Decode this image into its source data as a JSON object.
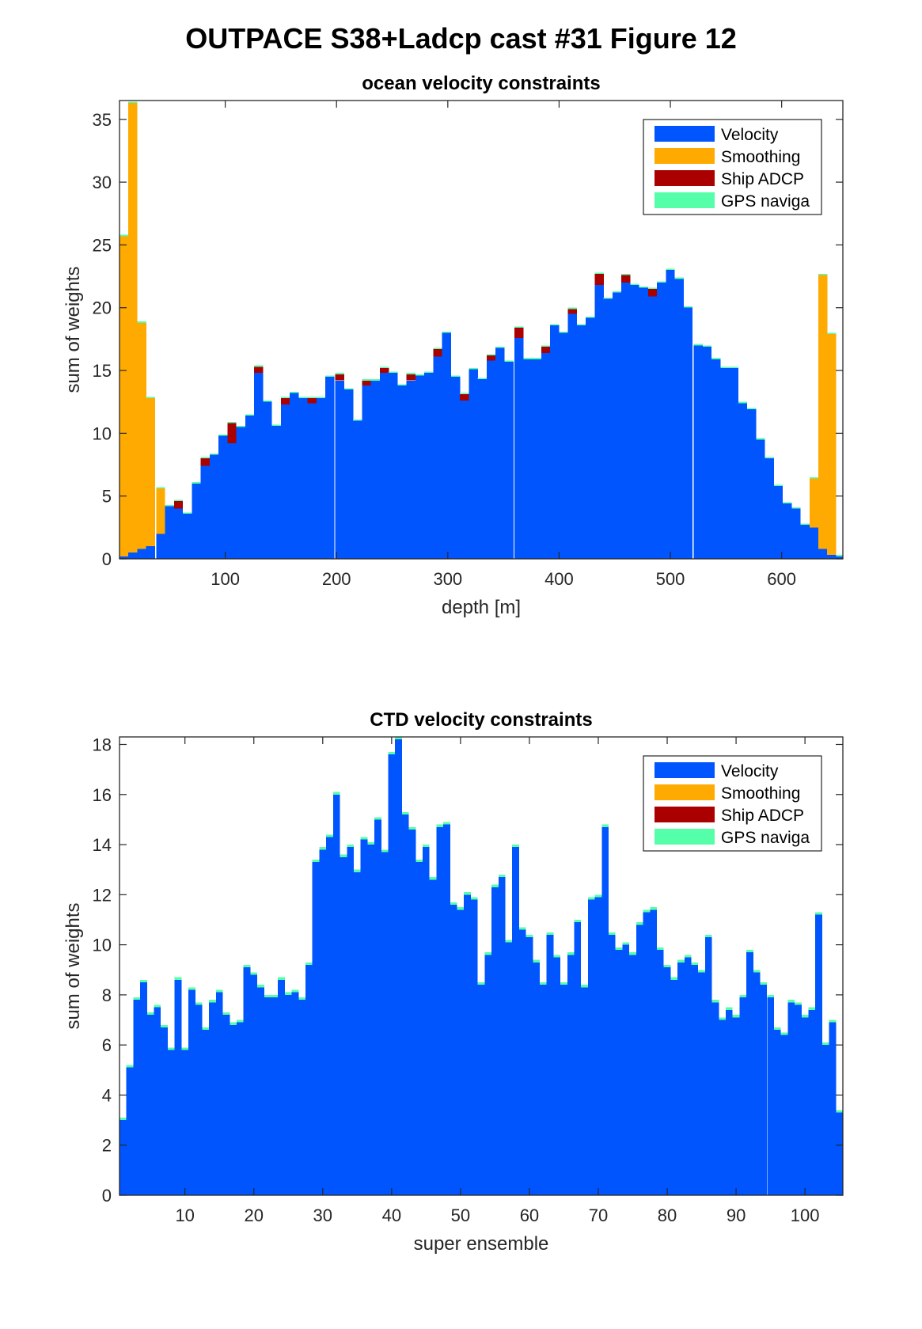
{
  "figure_title": "OUTPACE S38+Ladcp cast #31  Figure 12",
  "colors": {
    "velocity": "#0055FF",
    "smoothing": "#FFAA00",
    "ship_adcp": "#AA0000",
    "gps_naviga": "#55FFAA"
  },
  "chart_data": [
    {
      "type": "bar",
      "stacked": true,
      "title": "ocean velocity constraints",
      "xlabel": "depth [m]",
      "ylabel": "sum of weights",
      "xlim": [
        5,
        655
      ],
      "ylim": [
        0,
        36.5
      ],
      "xticks": [
        100,
        200,
        300,
        400,
        500,
        600
      ],
      "yticks": [
        0,
        5,
        10,
        15,
        20,
        25,
        30,
        35
      ],
      "bin_width": 8.1,
      "legend": [
        "Velocity",
        "Smoothing",
        "Ship ADCP",
        "GPS naviga"
      ],
      "legend_position": "top-right",
      "x": [
        9,
        17,
        25,
        33,
        42,
        50,
        58,
        66,
        74,
        82,
        90,
        98,
        106,
        114,
        122,
        130,
        138,
        146,
        154,
        162,
        170,
        178,
        186,
        194,
        203,
        211,
        219,
        227,
        235,
        243,
        251,
        259,
        267,
        275,
        283,
        291,
        299,
        307,
        315,
        323,
        331,
        339,
        347,
        355,
        364,
        372,
        380,
        388,
        396,
        404,
        412,
        420,
        428,
        436,
        444,
        452,
        460,
        468,
        476,
        484,
        492,
        500,
        508,
        516,
        525,
        533,
        541,
        549,
        557,
        565,
        573,
        581,
        589,
        597,
        605,
        613,
        621,
        629,
        637,
        645,
        653
      ],
      "series": [
        {
          "name": "Velocity",
          "values": [
            0.2,
            0.5,
            0.8,
            1.0,
            2.0,
            4.2,
            4.0,
            3.6,
            6.0,
            7.4,
            8.3,
            9.8,
            9.2,
            10.5,
            11.4,
            14.8,
            12.5,
            10.6,
            12.3,
            13.2,
            12.8,
            12.4,
            12.8,
            14.5,
            14.2,
            13.5,
            11.0,
            13.8,
            14.2,
            14.8,
            14.8,
            13.8,
            14.2,
            14.6,
            14.8,
            16.1,
            18.0,
            14.5,
            12.6,
            15.1,
            14.3,
            15.8,
            16.8,
            15.7,
            17.6,
            15.9,
            15.9,
            16.4,
            18.6,
            18.0,
            19.5,
            18.6,
            19.2,
            21.8,
            20.7,
            21.2,
            22.0,
            21.8,
            21.6,
            20.9,
            22.0,
            23.0,
            22.3,
            20.0,
            17.0,
            16.9,
            15.9,
            15.2,
            15.2,
            12.4,
            11.9,
            9.5,
            8.0,
            5.8,
            4.4,
            4.0,
            2.7,
            2.5,
            0.8,
            0.3,
            0.2
          ]
        },
        {
          "name": "Smoothing",
          "values": [
            25.5,
            35.8,
            18.0,
            11.8,
            3.6,
            0.0,
            0.0,
            0.0,
            0.0,
            0.0,
            0.0,
            0.0,
            0.0,
            0.0,
            0.0,
            0.0,
            0.0,
            0.0,
            0.0,
            0.0,
            0.0,
            0.0,
            0.0,
            0.0,
            0.0,
            0.0,
            0.0,
            0.0,
            0.0,
            0.0,
            0.0,
            0.0,
            0.0,
            0.0,
            0.0,
            0.0,
            0.0,
            0.0,
            0.0,
            0.0,
            0.0,
            0.0,
            0.0,
            0.0,
            0.0,
            0.0,
            0.0,
            0.0,
            0.0,
            0.0,
            0.0,
            0.0,
            0.0,
            0.0,
            0.0,
            0.0,
            0.0,
            0.0,
            0.0,
            0.0,
            0.0,
            0.0,
            0.0,
            0.0,
            0.0,
            0.0,
            0.0,
            0.0,
            0.0,
            0.0,
            0.0,
            0.0,
            0.0,
            0.0,
            0.0,
            0.0,
            0.0,
            3.9,
            21.8,
            17.6,
            0.0
          ]
        },
        {
          "name": "Ship ADCP",
          "values": [
            0.0,
            0.0,
            0.0,
            0.0,
            0.0,
            0.0,
            0.6,
            0.0,
            0.0,
            0.6,
            0.0,
            0.0,
            1.6,
            0.0,
            0.0,
            0.5,
            0.0,
            0.0,
            0.5,
            0.0,
            0.0,
            0.4,
            0.0,
            0.0,
            0.5,
            0.0,
            0.0,
            0.4,
            0.0,
            0.4,
            0.0,
            0.0,
            0.5,
            0.0,
            0.0,
            0.6,
            0.0,
            0.0,
            0.5,
            0.0,
            0.0,
            0.4,
            0.0,
            0.0,
            0.8,
            0.0,
            0.0,
            0.5,
            0.0,
            0.0,
            0.4,
            0.0,
            0.0,
            0.9,
            0.0,
            0.0,
            0.6,
            0.0,
            0.0,
            0.6,
            0.0,
            0.0,
            0.0,
            0.0,
            0.0,
            0.0,
            0.0,
            0.0,
            0.0,
            0.0,
            0.0,
            0.0,
            0.0,
            0.0,
            0.0,
            0.0,
            0.0,
            0.0,
            0.0,
            0.0,
            0.0
          ]
        },
        {
          "name": "GPS naviga",
          "values": [
            0.1,
            0.1,
            0.1,
            0.1,
            0.1,
            0.1,
            0.1,
            0.1,
            0.1,
            0.1,
            0.1,
            0.1,
            0.1,
            0.1,
            0.1,
            0.1,
            0.1,
            0.1,
            0.1,
            0.1,
            0.1,
            0.1,
            0.1,
            0.1,
            0.1,
            0.1,
            0.1,
            0.1,
            0.1,
            0.1,
            0.1,
            0.1,
            0.1,
            0.1,
            0.1,
            0.1,
            0.1,
            0.1,
            0.1,
            0.1,
            0.1,
            0.1,
            0.1,
            0.1,
            0.1,
            0.1,
            0.1,
            0.1,
            0.1,
            0.1,
            0.1,
            0.1,
            0.1,
            0.1,
            0.1,
            0.1,
            0.1,
            0.1,
            0.1,
            0.1,
            0.1,
            0.1,
            0.1,
            0.1,
            0.1,
            0.1,
            0.1,
            0.1,
            0.1,
            0.1,
            0.1,
            0.1,
            0.1,
            0.1,
            0.1,
            0.1,
            0.1,
            0.1,
            0.1,
            0.1,
            0.1
          ]
        }
      ]
    },
    {
      "type": "bar",
      "stacked": true,
      "title": "CTD velocity constraints",
      "xlabel": "super ensemble",
      "ylabel": "sum of weights",
      "xlim": [
        0.5,
        105.5
      ],
      "ylim": [
        0,
        18.3
      ],
      "xticks": [
        10,
        20,
        30,
        40,
        50,
        60,
        70,
        80,
        90,
        100
      ],
      "yticks": [
        0,
        2,
        4,
        6,
        8,
        10,
        12,
        14,
        16,
        18
      ],
      "bin_width": 1,
      "legend": [
        "Velocity",
        "Smoothing",
        "Ship ADCP",
        "GPS naviga"
      ],
      "legend_position": "top-right",
      "x": [
        1,
        2,
        3,
        4,
        5,
        6,
        7,
        8,
        9,
        10,
        11,
        12,
        13,
        14,
        15,
        16,
        17,
        18,
        19,
        20,
        21,
        22,
        23,
        24,
        25,
        26,
        27,
        28,
        29,
        30,
        31,
        32,
        33,
        34,
        35,
        36,
        37,
        38,
        39,
        40,
        41,
        42,
        43,
        44,
        45,
        46,
        47,
        48,
        49,
        50,
        51,
        52,
        53,
        54,
        55,
        56,
        57,
        58,
        59,
        60,
        61,
        62,
        63,
        64,
        65,
        66,
        67,
        68,
        69,
        70,
        71,
        72,
        73,
        74,
        75,
        76,
        77,
        78,
        79,
        80,
        81,
        82,
        83,
        84,
        85,
        86,
        87,
        88,
        89,
        90,
        91,
        92,
        93,
        94,
        95,
        96,
        97,
        98,
        99,
        100,
        101,
        102,
        103,
        104,
        105
      ],
      "series": [
        {
          "name": "Velocity",
          "values": [
            3.0,
            5.1,
            7.8,
            8.5,
            7.2,
            7.5,
            6.7,
            5.8,
            8.6,
            5.8,
            8.2,
            7.6,
            6.6,
            7.7,
            8.1,
            7.2,
            6.8,
            6.9,
            9.1,
            8.8,
            8.3,
            7.9,
            7.9,
            8.6,
            8.0,
            8.1,
            7.8,
            9.2,
            13.3,
            13.8,
            14.3,
            16.0,
            13.5,
            13.9,
            12.9,
            14.2,
            14.0,
            15.0,
            13.7,
            17.6,
            18.2,
            15.2,
            14.6,
            13.3,
            13.9,
            12.6,
            14.7,
            14.8,
            11.6,
            11.4,
            12.0,
            11.8,
            8.4,
            9.6,
            12.3,
            12.7,
            10.1,
            13.9,
            10.6,
            10.3,
            9.3,
            8.4,
            10.4,
            9.5,
            8.4,
            9.6,
            10.9,
            8.3,
            11.8,
            11.9,
            14.7,
            10.4,
            9.8,
            10.0,
            9.6,
            10.8,
            11.3,
            11.4,
            9.8,
            9.1,
            8.6,
            9.3,
            9.5,
            9.2,
            8.9,
            10.3,
            7.7,
            7.0,
            7.4,
            7.1,
            7.9,
            9.7,
            8.9,
            8.4,
            7.9,
            6.6,
            6.4,
            7.7,
            7.6,
            7.1,
            7.4,
            11.2,
            6.0,
            6.9,
            3.3
          ]
        },
        {
          "name": "Smoothing",
          "values": [
            0.0,
            0.0,
            0.0,
            0.0,
            0.0,
            0.0,
            0.0,
            0.0,
            0.0,
            0.0,
            0.0,
            0.0,
            0.0,
            0.0,
            0.0,
            0.0,
            0.0,
            0.0,
            0.0,
            0.0,
            0.0,
            0.0,
            0.0,
            0.0,
            0.0,
            0.0,
            0.0,
            0.0,
            0.0,
            0.0,
            0.0,
            0.0,
            0.0,
            0.0,
            0.0,
            0.0,
            0.0,
            0.0,
            0.0,
            0.0,
            0.0,
            0.0,
            0.0,
            0.0,
            0.0,
            0.0,
            0.0,
            0.0,
            0.0,
            0.0,
            0.0,
            0.0,
            0.0,
            0.0,
            0.0,
            0.0,
            0.0,
            0.0,
            0.0,
            0.0,
            0.0,
            0.0,
            0.0,
            0.0,
            0.0,
            0.0,
            0.0,
            0.0,
            0.0,
            0.0,
            0.0,
            0.0,
            0.0,
            0.0,
            0.0,
            0.0,
            0.0,
            0.0,
            0.0,
            0.0,
            0.0,
            0.0,
            0.0,
            0.0,
            0.0,
            0.0,
            0.0,
            0.0,
            0.0,
            0.0,
            0.0,
            0.0,
            0.0,
            0.0,
            0.0,
            0.0,
            0.0,
            0.0,
            0.0,
            0.0,
            0.0,
            0.0,
            0.0,
            0.0,
            0.0
          ]
        },
        {
          "name": "Ship ADCP",
          "values": [
            0.0,
            0.0,
            0.0,
            0.0,
            0.0,
            0.0,
            0.0,
            0.0,
            0.0,
            0.0,
            0.0,
            0.0,
            0.0,
            0.0,
            0.0,
            0.0,
            0.0,
            0.0,
            0.0,
            0.0,
            0.0,
            0.0,
            0.0,
            0.0,
            0.0,
            0.0,
            0.0,
            0.0,
            0.0,
            0.0,
            0.0,
            0.0,
            0.0,
            0.0,
            0.0,
            0.0,
            0.0,
            0.0,
            0.0,
            0.0,
            0.0,
            0.0,
            0.0,
            0.0,
            0.0,
            0.0,
            0.0,
            0.0,
            0.0,
            0.0,
            0.0,
            0.0,
            0.0,
            0.0,
            0.0,
            0.0,
            0.0,
            0.0,
            0.0,
            0.0,
            0.0,
            0.0,
            0.0,
            0.0,
            0.0,
            0.0,
            0.0,
            0.0,
            0.0,
            0.0,
            0.0,
            0.0,
            0.0,
            0.0,
            0.0,
            0.0,
            0.0,
            0.0,
            0.0,
            0.0,
            0.0,
            0.0,
            0.0,
            0.0,
            0.0,
            0.0,
            0.0,
            0.0,
            0.0,
            0.0,
            0.0,
            0.0,
            0.0,
            0.0,
            0.0,
            0.0,
            0.0,
            0.0,
            0.0,
            0.0,
            0.0,
            0.0,
            0.0,
            0.0,
            0.0
          ]
        },
        {
          "name": "GPS naviga",
          "values": [
            0.1,
            0.1,
            0.1,
            0.1,
            0.1,
            0.1,
            0.1,
            0.1,
            0.1,
            0.1,
            0.1,
            0.1,
            0.1,
            0.1,
            0.1,
            0.1,
            0.1,
            0.1,
            0.1,
            0.1,
            0.1,
            0.1,
            0.1,
            0.1,
            0.1,
            0.1,
            0.1,
            0.1,
            0.1,
            0.1,
            0.1,
            0.1,
            0.1,
            0.1,
            0.1,
            0.1,
            0.1,
            0.1,
            0.1,
            0.1,
            0.1,
            0.1,
            0.1,
            0.1,
            0.1,
            0.1,
            0.1,
            0.1,
            0.1,
            0.1,
            0.1,
            0.1,
            0.1,
            0.1,
            0.1,
            0.1,
            0.1,
            0.1,
            0.1,
            0.1,
            0.1,
            0.1,
            0.1,
            0.1,
            0.1,
            0.1,
            0.1,
            0.1,
            0.1,
            0.1,
            0.1,
            0.1,
            0.1,
            0.1,
            0.1,
            0.1,
            0.1,
            0.1,
            0.1,
            0.1,
            0.1,
            0.1,
            0.1,
            0.1,
            0.1,
            0.1,
            0.1,
            0.1,
            0.1,
            0.1,
            0.1,
            0.1,
            0.1,
            0.1,
            0.1,
            0.1,
            0.1,
            0.1,
            0.1,
            0.1,
            0.1,
            0.1,
            0.1,
            0.1,
            0.1
          ]
        }
      ]
    }
  ]
}
